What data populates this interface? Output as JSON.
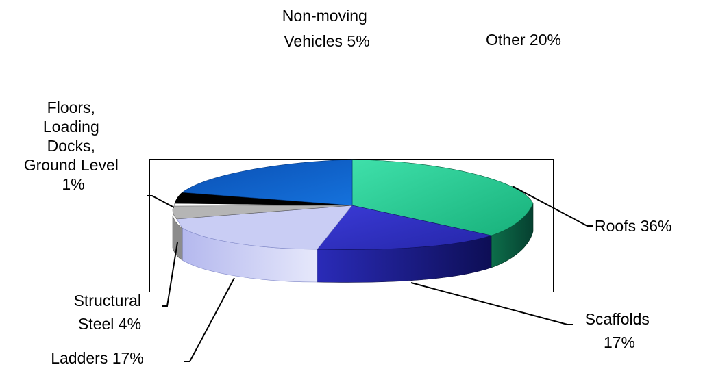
{
  "chart_data": {
    "type": "pie",
    "style": "3d-exploded-pie",
    "title": "",
    "slices": [
      {
        "key": "roofs",
        "label_lines": [
          "Roofs 36%"
        ],
        "value": 36,
        "color": "#1fcc8f",
        "side_color": "#0a5a3e"
      },
      {
        "key": "scaffolds",
        "label_lines": [
          "Scaffolds",
          "17%"
        ],
        "value": 17,
        "color": "#2e2fc2",
        "side_color": "#1e1f8a"
      },
      {
        "key": "ladders",
        "label_lines": [
          "Ladders 17%"
        ],
        "value": 17,
        "color": "#c8ccf2",
        "side_color": "#aab0e6"
      },
      {
        "key": "structural-steel",
        "label_lines": [
          "Structural",
          "Steel 4%"
        ],
        "value": 4,
        "color": "#b3b3b3",
        "side_color": "#8a8a8a"
      },
      {
        "key": "floors-loading-docks",
        "label_lines": [
          "Floors,",
          "Loading",
          "Docks,",
          "Ground Level",
          "1%"
        ],
        "value": 1,
        "color": "#ffffff",
        "side_color": "#dddddd"
      },
      {
        "key": "non-moving-vehicles",
        "label_lines": [
          "Non-moving",
          "Vehicles 5%"
        ],
        "value": 5,
        "color": "#000000",
        "side_color": "#000000"
      },
      {
        "key": "other",
        "label_lines": [
          "Other 20%"
        ],
        "value": 20,
        "color": "#0b62c7",
        "side_color": "#074a99"
      }
    ],
    "legend": "none"
  }
}
